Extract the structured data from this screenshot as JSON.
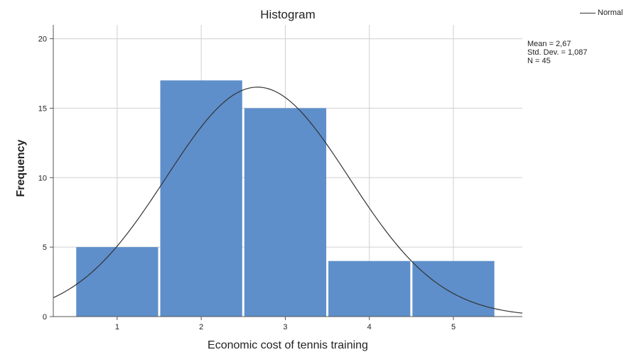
{
  "chart_data": {
    "type": "bar",
    "title": "Histogram",
    "xlabel": "Economic cost of tennis training",
    "ylabel": "Frequency",
    "categories": [
      "1",
      "2",
      "3",
      "4",
      "5"
    ],
    "values": [
      5,
      17,
      15,
      4,
      4
    ],
    "ylim": [
      0,
      21
    ],
    "xlim": [
      0.24,
      5.82
    ],
    "yticks": [
      0,
      5,
      10,
      15,
      20
    ],
    "grid": true,
    "legend_position": "top-right",
    "series": [
      {
        "name": "Normal",
        "type": "line",
        "mean": 2.67,
        "std": 1.087,
        "n": 45,
        "bin_width": 1
      }
    ],
    "stats": {
      "mean_label": "Mean = 2,67",
      "std_label": "Std. Dev. = 1,087",
      "n_label": "N = 45"
    },
    "colors": {
      "bar": "#5e8fcb",
      "curve": "#333333",
      "grid": "#d0d0d0",
      "axis": "#555555"
    }
  }
}
